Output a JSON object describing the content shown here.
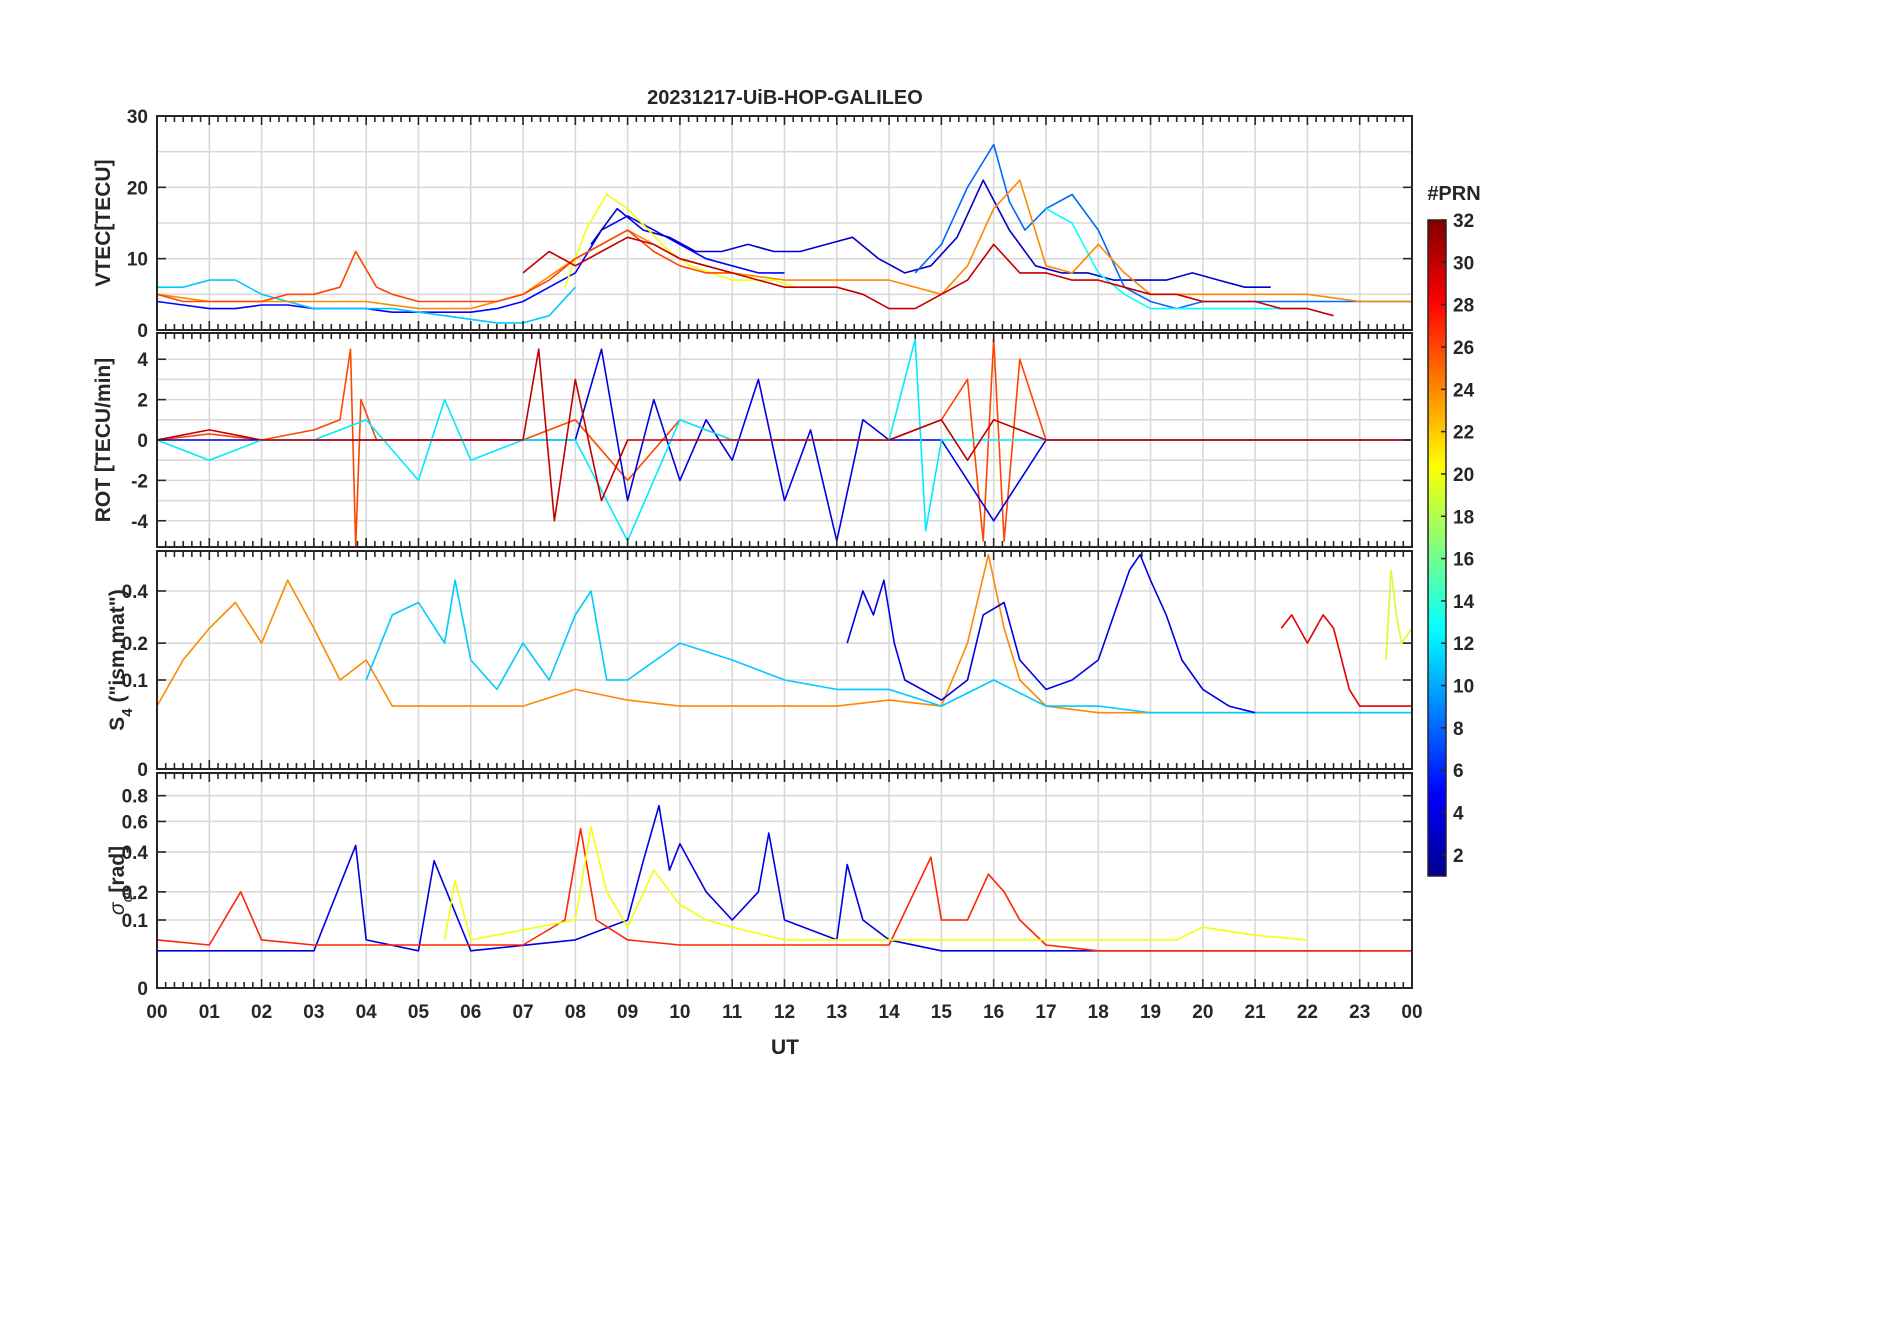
{
  "figure": {
    "title": "20231217-UiB-HOP-GALILEO",
    "x_axis_label": "UT",
    "x_tick_labels": [
      "00",
      "01",
      "02",
      "03",
      "04",
      "05",
      "06",
      "07",
      "08",
      "09",
      "10",
      "11",
      "12",
      "13",
      "14",
      "15",
      "16",
      "17",
      "18",
      "19",
      "20",
      "21",
      "22",
      "23",
      "00"
    ]
  },
  "colorbar": {
    "label": "#PRN",
    "range": [
      1,
      32
    ],
    "tick_labels": [
      "2",
      "4",
      "6",
      "8",
      "10",
      "12",
      "14",
      "16",
      "18",
      "20",
      "22",
      "24",
      "26",
      "28",
      "30",
      "32"
    ],
    "colormap": [
      "#00008f",
      "#0000ff",
      "#0080ff",
      "#00ffff",
      "#80ff80",
      "#ffff00",
      "#ff8000",
      "#ff0000",
      "#800000"
    ]
  },
  "panels": [
    {
      "id": "vtec",
      "ylabel": "VTEC[TECU]",
      "ylim": [
        0,
        30
      ],
      "y_ticks": [
        0,
        10,
        20,
        30
      ],
      "y_tick_labels": [
        "0",
        "10",
        "20",
        "30"
      ]
    },
    {
      "id": "rot",
      "ylabel": "ROT [TECU/min]",
      "ylim": [
        -5.3,
        5.3
      ],
      "y_ticks": [
        -4,
        -2,
        0,
        2,
        4
      ],
      "y_tick_labels": [
        "-4",
        "-2",
        "0",
        "2",
        "4"
      ]
    },
    {
      "id": "s4",
      "ylabel_main": "S",
      "ylabel_sub": "4",
      "ylabel_rest": " (\"ism.mat\")",
      "ylim": [
        0,
        0.6
      ],
      "y_ticks": [
        0,
        0.1,
        0.2,
        0.4
      ],
      "y_tick_labels": [
        "0",
        "0.1",
        "0.2",
        "0.4"
      ],
      "scale": "sqrt"
    },
    {
      "id": "sigma",
      "ylabel_main": "σ",
      "ylabel_sub": "φ",
      "ylabel_rest": "[rad]",
      "ylim": [
        0,
        1.0
      ],
      "y_ticks": [
        0,
        0.1,
        0.2,
        0.4,
        0.6,
        0.8
      ],
      "y_tick_labels": [
        "0",
        "0.1",
        "0.2",
        "0.4",
        "0.6",
        "0.8"
      ],
      "scale": "sqrt"
    }
  ],
  "chart_data": {
    "type": "line",
    "title": "20231217-UiB-HOP-GALILEO",
    "xlabel": "UT",
    "xlim": [
      0,
      24
    ],
    "x_unit": "hours",
    "color_by": "#PRN",
    "series": [
      {
        "prn": 5,
        "panel": "vtec",
        "x": [
          0,
          0.5,
          1,
          1.5,
          2,
          2.5,
          3,
          3.5,
          4,
          4.5,
          5,
          5.5,
          6,
          6.5,
          7,
          7.5,
          8,
          8.5,
          9,
          9.5,
          10,
          10.5,
          11,
          11.5,
          12
        ],
        "values": [
          4,
          3.5,
          3,
          3,
          3.5,
          3.5,
          3,
          3,
          3,
          2.5,
          2.5,
          2.5,
          2.5,
          3,
          4,
          6,
          8,
          14,
          16,
          14,
          12,
          10,
          9,
          8,
          8
        ]
      },
      {
        "prn": 3,
        "panel": "vtec",
        "x": [
          8.3,
          8.8,
          9.3,
          9.8,
          10.3,
          10.8,
          11.3,
          11.8,
          12.3,
          12.8,
          13.3,
          13.8,
          14.3,
          14.8,
          15.3,
          15.8,
          16.3,
          16.8,
          17.3,
          17.8,
          18.3,
          18.8,
          19.3,
          19.8,
          20.3,
          20.8,
          21.3
        ],
        "values": [
          12,
          17,
          14,
          13,
          11,
          11,
          12,
          11,
          11,
          12,
          13,
          10,
          8,
          9,
          13,
          21,
          14,
          9,
          8,
          8,
          7,
          7,
          7,
          8,
          7,
          6,
          6
        ]
      },
      {
        "prn": 8,
        "panel": "vtec",
        "x": [
          14.5,
          15,
          15.5,
          16,
          16.3,
          16.6,
          17,
          17.5,
          18,
          18.5,
          19,
          19.5,
          20,
          20.5,
          21,
          21.5,
          22,
          22.5,
          23,
          23.5,
          24
        ],
        "values": [
          8,
          12,
          20,
          26,
          18,
          14,
          17,
          19,
          14,
          6,
          4,
          3,
          4,
          4,
          4,
          4,
          4,
          4,
          4,
          4,
          4
        ]
      },
      {
        "prn": 11,
        "panel": "vtec",
        "x": [
          0,
          0.5,
          1,
          1.5,
          2,
          2.5,
          3,
          3.5,
          4,
          4.5,
          5,
          5.5,
          6,
          6.5,
          7,
          7.5,
          8
        ],
        "values": [
          6,
          6,
          7,
          7,
          5,
          4,
          3,
          3,
          3,
          3,
          2.5,
          2,
          1.5,
          1,
          1,
          2,
          6
        ]
      },
      {
        "prn": 13,
        "panel": "vtec",
        "x": [
          17,
          17.5,
          18,
          18.5,
          19,
          19.5,
          20,
          20.5,
          21,
          21.5,
          22
        ],
        "values": [
          17,
          15,
          8,
          5,
          3,
          3,
          3,
          3,
          3,
          3,
          3
        ]
      },
      {
        "prn": 20,
        "panel": "vtec",
        "x": [
          7.8,
          8.2,
          8.6,
          9,
          9.4,
          9.8,
          10.2,
          10.6,
          11,
          11.4,
          11.8,
          12.2
        ],
        "values": [
          6,
          14,
          19,
          17,
          14,
          11,
          9,
          8,
          7,
          7,
          7,
          6
        ]
      },
      {
        "prn": 24,
        "panel": "vtec",
        "x": [
          0,
          1,
          2,
          3,
          4,
          5,
          6,
          7,
          8,
          9,
          10,
          11,
          12,
          13,
          14,
          15,
          15.5,
          16,
          16.5,
          17,
          17.5,
          18,
          18.5,
          19,
          20,
          21,
          22,
          23,
          24
        ],
        "values": [
          5,
          4,
          4,
          4,
          4,
          3,
          3,
          5,
          10,
          14,
          10,
          8,
          7,
          7,
          7,
          5,
          9,
          17,
          21,
          9,
          8,
          12,
          8,
          5,
          5,
          5,
          5,
          4,
          4
        ]
      },
      {
        "prn": 26,
        "panel": "vtec",
        "x": [
          0,
          0.5,
          1,
          1.5,
          2,
          2.5,
          3,
          3.5,
          3.8,
          4.2,
          4.5,
          5,
          5.5,
          6,
          6.5,
          7,
          7.5,
          8,
          8.5,
          9,
          9.5,
          10,
          10.5,
          11
        ],
        "values": [
          5,
          4,
          4,
          4,
          4,
          5,
          5,
          6,
          11,
          6,
          5,
          4,
          4,
          4,
          4,
          5,
          7,
          10,
          12,
          14,
          11,
          9,
          8,
          8
        ]
      },
      {
        "prn": 30,
        "panel": "vtec",
        "x": [
          7,
          7.5,
          8,
          8.5,
          9,
          9.5,
          10,
          10.5,
          11,
          11.5,
          12,
          12.5,
          13,
          13.5,
          14,
          14.5,
          15,
          15.5,
          16,
          16.5,
          17,
          17.5,
          18,
          18.5,
          19,
          19.5,
          20,
          20.5,
          21,
          21.5,
          22,
          22.5
        ],
        "values": [
          8,
          11,
          9,
          11,
          13,
          12,
          10,
          9,
          8,
          7,
          6,
          6,
          6,
          5,
          3,
          3,
          5,
          7,
          12,
          8,
          8,
          7,
          7,
          6,
          5,
          5,
          4,
          4,
          4,
          3,
          3,
          2
        ]
      },
      {
        "prn": 26,
        "panel": "rot",
        "x": [
          0,
          1,
          2,
          3,
          3.5,
          3.7,
          3.8,
          3.9,
          4.2,
          5,
          6,
          7,
          8,
          9,
          10,
          11,
          12,
          13,
          14,
          15,
          15.5,
          15.8,
          16,
          16.2,
          16.5,
          17,
          18,
          19,
          20,
          21,
          22,
          23,
          24
        ],
        "values": [
          0,
          0.3,
          0,
          0.5,
          1,
          4.5,
          -5.3,
          2,
          0,
          0,
          0,
          0,
          1,
          -2,
          1,
          0,
          0,
          0,
          0,
          1,
          3,
          -5,
          5,
          -5,
          4,
          0,
          0,
          0,
          0,
          0,
          0,
          0,
          0
        ]
      },
      {
        "prn": 4,
        "panel": "rot",
        "x": [
          0,
          2,
          4,
          6,
          8,
          8.5,
          9,
          9.5,
          10,
          10.5,
          11,
          11.5,
          12,
          12.5,
          13,
          13.5,
          14,
          15,
          16,
          17,
          18,
          19,
          20,
          21,
          22,
          23,
          24
        ],
        "values": [
          0,
          0,
          0,
          0,
          0,
          4.5,
          -3,
          2,
          -2,
          1,
          -1,
          3,
          -3,
          0.5,
          -5,
          1,
          0,
          0,
          -4,
          0,
          0,
          0,
          0,
          0,
          0,
          0,
          0
        ]
      },
      {
        "prn": 12,
        "panel": "rot",
        "x": [
          0,
          1,
          2,
          3,
          4,
          5,
          5.5,
          6,
          7,
          8,
          9,
          10,
          11,
          12,
          13,
          14,
          14.5,
          14.7,
          15,
          16,
          17,
          18,
          19,
          20,
          21,
          22,
          23,
          24
        ],
        "values": [
          0,
          -1,
          0,
          0,
          1,
          -2,
          2,
          -1,
          0,
          0,
          -5,
          1,
          0,
          0,
          0,
          0,
          5,
          -4.5,
          0,
          0,
          0,
          0,
          0,
          0,
          0,
          0,
          0,
          0
        ]
      },
      {
        "prn": 30,
        "panel": "rot",
        "x": [
          0,
          1,
          2,
          3,
          4,
          5,
          6,
          7,
          7.3,
          7.6,
          8,
          8.5,
          9,
          10,
          11,
          12,
          13,
          14,
          15,
          15.5,
          16,
          17,
          18,
          19,
          20,
          21,
          22,
          23,
          24
        ],
        "values": [
          0,
          0.5,
          0,
          0,
          0,
          0,
          0,
          0,
          4.5,
          -4,
          3,
          -3,
          0,
          0,
          0,
          0,
          0,
          0,
          1,
          -1,
          1,
          0,
          0,
          0,
          0,
          0,
          0,
          0,
          0
        ]
      },
      {
        "prn": 24,
        "panel": "s4",
        "x": [
          0,
          0.5,
          1,
          1.5,
          2,
          2.5,
          3,
          3.5,
          4,
          4.5,
          5,
          6,
          7,
          8,
          9,
          10,
          11,
          12,
          13,
          14,
          15,
          15.5,
          15.9,
          16.2,
          16.5,
          17,
          18,
          19,
          20,
          21,
          22,
          23,
          24
        ],
        "values": [
          0.05,
          0.15,
          0.25,
          0.35,
          0.2,
          0.45,
          0.25,
          0.1,
          0.15,
          0.05,
          0.05,
          0.05,
          0.05,
          0.08,
          0.06,
          0.05,
          0.05,
          0.05,
          0.05,
          0.06,
          0.05,
          0.2,
          0.58,
          0.25,
          0.1,
          0.05,
          0.04,
          0.04,
          0.04,
          0.04,
          0.04,
          0.04,
          0.04
        ]
      },
      {
        "prn": 11,
        "panel": "s4",
        "x": [
          4,
          4.5,
          5,
          5.5,
          5.7,
          6,
          6.5,
          7,
          7.5,
          8,
          8.3,
          8.6,
          9,
          10,
          11,
          12,
          13,
          14,
          15,
          16,
          17,
          18,
          19,
          20,
          21,
          22,
          23,
          24
        ],
        "values": [
          0.1,
          0.3,
          0.35,
          0.2,
          0.45,
          0.15,
          0.08,
          0.2,
          0.1,
          0.3,
          0.4,
          0.1,
          0.1,
          0.2,
          0.15,
          0.1,
          0.08,
          0.08,
          0.05,
          0.1,
          0.05,
          0.05,
          0.04,
          0.04,
          0.04,
          0.04,
          0.04,
          0.04
        ]
      },
      {
        "prn": 4,
        "panel": "s4",
        "x": [
          13.2,
          13.5,
          13.7,
          13.9,
          14.1,
          14.3,
          15,
          15.5,
          15.8,
          16.2,
          16.5,
          17,
          17.5,
          18,
          18.3,
          18.6,
          18.8,
          19,
          19.3,
          19.6,
          20,
          20.5,
          21
        ],
        "values": [
          0.2,
          0.4,
          0.3,
          0.45,
          0.2,
          0.1,
          0.06,
          0.1,
          0.3,
          0.35,
          0.15,
          0.08,
          0.1,
          0.15,
          0.3,
          0.5,
          0.58,
          0.45,
          0.3,
          0.15,
          0.08,
          0.05,
          0.04
        ]
      },
      {
        "prn": 29,
        "panel": "s4",
        "x": [
          21.5,
          21.7,
          22,
          22.3,
          22.5,
          22.8,
          23,
          23.5,
          24
        ],
        "values": [
          0.25,
          0.3,
          0.2,
          0.3,
          0.25,
          0.08,
          0.05,
          0.05,
          0.05
        ]
      },
      {
        "prn": 19,
        "panel": "s4",
        "x": [
          23.5,
          23.6,
          23.7,
          23.8,
          24
        ],
        "values": [
          0.15,
          0.5,
          0.3,
          0.2,
          0.25
        ]
      },
      {
        "prn": 4,
        "panel": "sigma",
        "x": [
          0,
          2,
          3,
          3.8,
          4,
          5,
          5.3,
          6,
          8,
          9,
          9.3,
          9.6,
          9.8,
          10,
          10.5,
          11,
          11.5,
          11.7,
          12,
          13,
          13.2,
          13.5,
          14,
          15,
          16,
          17,
          18,
          19,
          20,
          21,
          22,
          23,
          24
        ],
        "values": [
          0.03,
          0.03,
          0.03,
          0.44,
          0.05,
          0.03,
          0.35,
          0.03,
          0.05,
          0.1,
          0.35,
          0.72,
          0.3,
          0.45,
          0.2,
          0.1,
          0.2,
          0.52,
          0.1,
          0.05,
          0.33,
          0.1,
          0.05,
          0.03,
          0.03,
          0.03,
          0.03,
          0.03,
          0.03,
          0.03,
          0.03,
          0.03,
          0.03
        ]
      },
      {
        "prn": 27,
        "panel": "sigma",
        "x": [
          0,
          1,
          1.6,
          2,
          3,
          4,
          5,
          6,
          7,
          7.8,
          8.1,
          8.4,
          9,
          10,
          11,
          12,
          13,
          14,
          14.8,
          15,
          15.5,
          15.9,
          16.2,
          16.5,
          17,
          18,
          19,
          20,
          21,
          22,
          23,
          24
        ],
        "values": [
          0.05,
          0.04,
          0.2,
          0.05,
          0.04,
          0.04,
          0.04,
          0.04,
          0.04,
          0.1,
          0.55,
          0.1,
          0.05,
          0.04,
          0.04,
          0.04,
          0.04,
          0.04,
          0.37,
          0.1,
          0.1,
          0.28,
          0.2,
          0.1,
          0.04,
          0.03,
          0.03,
          0.03,
          0.03,
          0.03,
          0.03,
          0.03
        ]
      },
      {
        "prn": 20,
        "panel": "sigma",
        "x": [
          5.5,
          5.7,
          6,
          8,
          8.3,
          8.6,
          9,
          9.5,
          10,
          10.5,
          11,
          12,
          19.5,
          20,
          21,
          22
        ],
        "values": [
          0.05,
          0.25,
          0.05,
          0.1,
          0.56,
          0.2,
          0.08,
          0.3,
          0.15,
          0.1,
          0.08,
          0.05,
          0.05,
          0.08,
          0.06,
          0.05
        ]
      }
    ]
  }
}
